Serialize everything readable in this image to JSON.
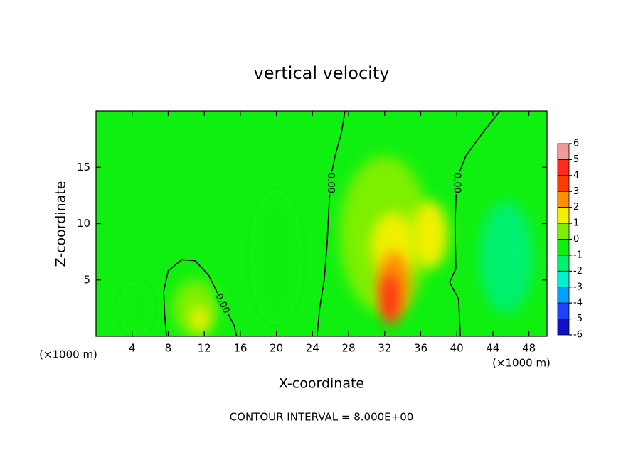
{
  "chart_data": {
    "type": "contour",
    "title": "vertical velocity",
    "x_label": "X-coordinate",
    "y_label": "Z-coordinate",
    "unit_label": "(×1000 m)",
    "footer": "CONTOUR INTERVAL = 8.000E+00",
    "xlim": [
      0,
      50
    ],
    "ylim": [
      0,
      20
    ],
    "xticks": [
      4,
      8,
      12,
      16,
      20,
      24,
      28,
      32,
      36,
      40,
      44,
      48
    ],
    "yticks": [
      5,
      10,
      15
    ],
    "background_value": 0,
    "colorbar": {
      "ticks": [
        6,
        5,
        4,
        3,
        2,
        1,
        0,
        -1,
        -2,
        -3,
        -4,
        -5,
        -6
      ],
      "colors": [
        "#f09a9a",
        "#ff2a1a",
        "#ff3a00",
        "#ff9000",
        "#f0f000",
        "#7cf000",
        "#10f010",
        "#00f070",
        "#00f0d0",
        "#00a0ff",
        "#2040ff",
        "#1010c0"
      ]
    },
    "blobs": [
      {
        "x": 32,
        "z": 9,
        "rx": 5,
        "rz": 7,
        "value": 0.6
      },
      {
        "x": 33,
        "z": 8,
        "rx": 2.5,
        "rz": 3,
        "value": 1.5
      },
      {
        "x": 33,
        "z": 4.5,
        "rx": 1.8,
        "rz": 3,
        "value": 2.5
      },
      {
        "x": 32.6,
        "z": 3.3,
        "rx": 0.9,
        "rz": 2.3,
        "value": 4.5
      },
      {
        "x": 11,
        "z": 2.5,
        "rx": 2.5,
        "rz": 2.5,
        "value": 0.6
      },
      {
        "x": 11.5,
        "z": 1.5,
        "rx": 1,
        "rz": 1.2,
        "value": 1.5
      },
      {
        "x": 45.5,
        "z": 7,
        "rx": 3,
        "rz": 5,
        "value": -1.5
      },
      {
        "x": 4.5,
        "z": 2.5,
        "rx": 2,
        "rz": 2.5,
        "value": -0.8
      },
      {
        "x": 20,
        "z": 7,
        "rx": 3,
        "rz": 6,
        "value": -0.5
      },
      {
        "x": 37,
        "z": 9,
        "rx": 2,
        "rz": 3,
        "value": 1.2
      }
    ],
    "contours": [
      {
        "x": [
          7.8,
          7.6,
          7.5,
          8,
          9.5,
          11,
          12.5,
          13.5,
          14.5,
          15.3,
          15.6
        ],
        "z": [
          0,
          2,
          4,
          5.8,
          6.8,
          6.7,
          5.4,
          3.8,
          2.2,
          1,
          0
        ]
      },
      {
        "x": [
          27.6,
          27.2,
          26.5,
          26,
          25.8,
          25.6,
          25.3,
          24.8,
          24.5
        ],
        "z": [
          20,
          18,
          16,
          14,
          11,
          8,
          5,
          2.5,
          0
        ]
      },
      {
        "x": [
          44.8,
          43,
          41,
          40,
          39.8,
          39.9,
          39.2,
          40.2,
          40.4
        ],
        "z": [
          20,
          18.2,
          16,
          14,
          10,
          6,
          4.8,
          3.3,
          0
        ]
      }
    ],
    "contour_labels": [
      {
        "text": "0.00",
        "x": 14,
        "z": 2.9
      },
      {
        "text": "0.00",
        "x": 26,
        "z": 13.6
      },
      {
        "text": "0.00",
        "x": 40,
        "z": 13.6
      }
    ]
  }
}
